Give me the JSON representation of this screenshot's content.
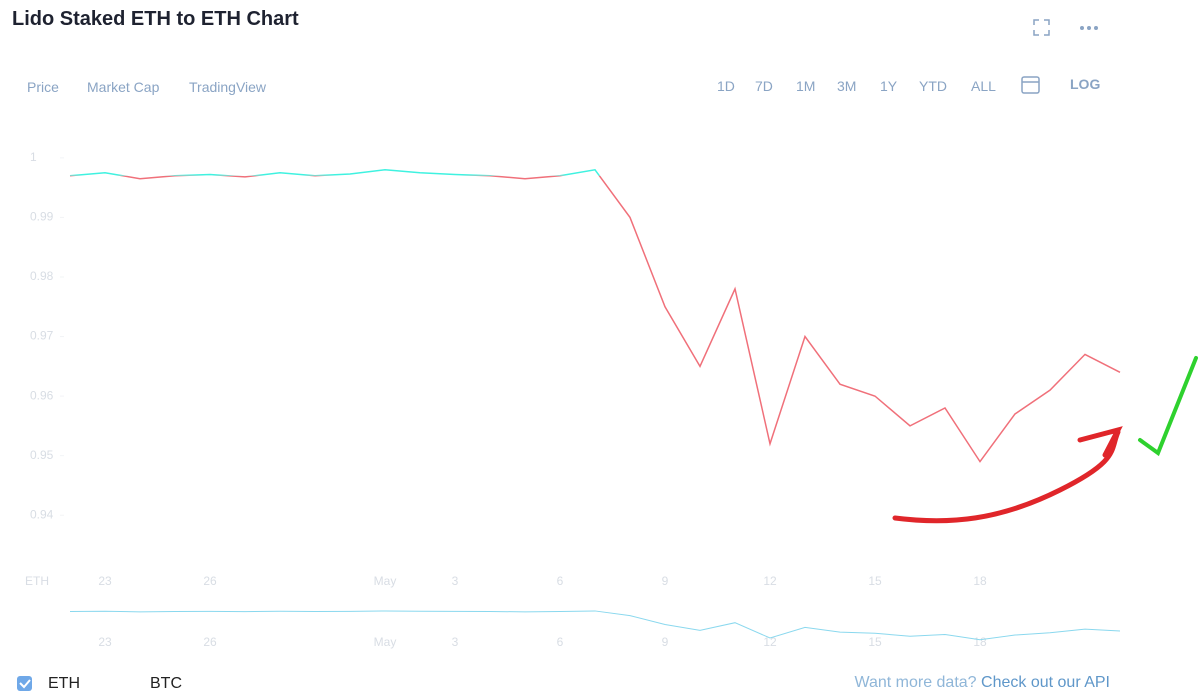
{
  "header": {
    "title": "Lido Staked ETH to ETH Chart",
    "tabs": [
      "Price",
      "Market Cap",
      "TradingView"
    ],
    "ranges": [
      "1D",
      "7D",
      "1M",
      "3M",
      "1Y",
      "YTD",
      "ALL",
      "LOG"
    ]
  },
  "chart_data": {
    "type": "line",
    "y_axis_label": "ETH",
    "categories": [
      null,
      "23",
      null,
      null,
      "26",
      null,
      null,
      null,
      null,
      "May",
      null,
      "3",
      null,
      null,
      "6",
      null,
      null,
      "9",
      null,
      null,
      "12",
      null,
      null,
      "15",
      null,
      null,
      "18",
      null,
      null,
      null,
      null
    ],
    "series": [
      {
        "name": "ETH",
        "color": "#f0707a",
        "color_above": "#3ff2e0",
        "values": [
          0.997,
          0.9975,
          0.9965,
          0.997,
          0.9972,
          0.9968,
          0.9975,
          0.997,
          0.9973,
          0.998,
          0.9975,
          0.9972,
          0.997,
          0.9965,
          0.997,
          0.998,
          0.99,
          0.975,
          0.965,
          0.978,
          0.952,
          0.97,
          0.962,
          0.96,
          0.955,
          0.958,
          0.949,
          0.957,
          0.961,
          0.967,
          0.964
        ]
      }
    ],
    "ylim": [
      0.935,
      1.003
    ],
    "yticks": [
      1.0,
      0.99,
      0.98,
      0.97,
      0.96,
      0.95,
      0.94
    ]
  },
  "footer": {
    "legend": [
      "ETH",
      "BTC"
    ],
    "api_text": "Want more data?",
    "api_link": "Check out our API"
  }
}
